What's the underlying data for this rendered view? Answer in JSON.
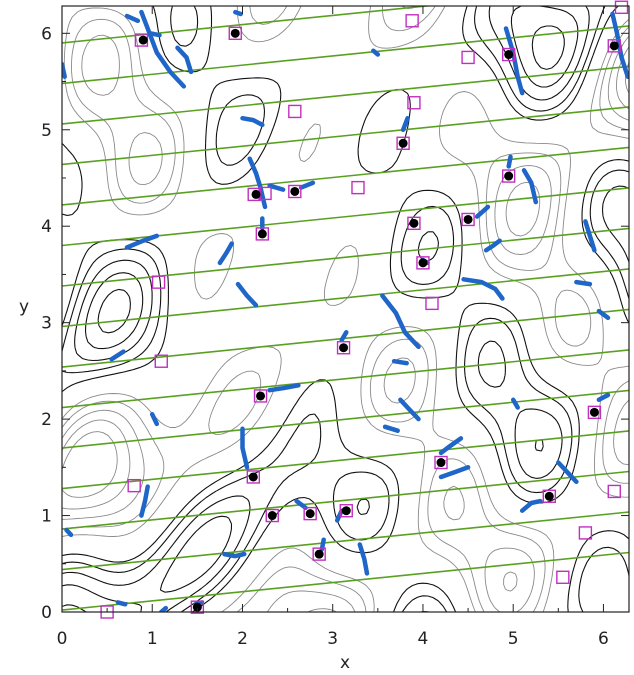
{
  "chart_data": {
    "type": "scatter",
    "title": "",
    "xlabel": "x",
    "ylabel": "y",
    "xlim": [
      0,
      6.2832
    ],
    "ylim": [
      0,
      6.2832
    ],
    "xticks": [
      0,
      1,
      2,
      3,
      4,
      5,
      6
    ],
    "yticks": [
      0,
      1,
      2,
      3,
      4,
      5,
      6
    ],
    "grid": false,
    "colors": {
      "contour_strong": "#111111",
      "contour_weak": "#8a8a8a",
      "field_lines": "#5aa020",
      "filled_points": "#000000",
      "square_markers": "#c030c0",
      "blue_arcs": "#1f66c8"
    },
    "field_lines": {
      "slope": 0.095,
      "intercepts": [
        0.02,
        0.44,
        0.86,
        1.28,
        1.7,
        2.12,
        2.54,
        2.96,
        3.38,
        3.8,
        4.22,
        4.64,
        5.06,
        5.48,
        5.9,
        6.32
      ]
    },
    "filled_points": [
      {
        "x": 0.9,
        "y": 5.93
      },
      {
        "x": 1.92,
        "y": 6.0
      },
      {
        "x": 4.95,
        "y": 5.78
      },
      {
        "x": 6.12,
        "y": 5.87
      },
      {
        "x": 3.78,
        "y": 4.86
      },
      {
        "x": 4.95,
        "y": 4.52
      },
      {
        "x": 2.15,
        "y": 4.33
      },
      {
        "x": 2.58,
        "y": 4.36
      },
      {
        "x": 2.22,
        "y": 3.92
      },
      {
        "x": 3.9,
        "y": 4.03
      },
      {
        "x": 4.5,
        "y": 4.07
      },
      {
        "x": 4.0,
        "y": 3.62
      },
      {
        "x": 3.12,
        "y": 2.74
      },
      {
        "x": 2.2,
        "y": 2.24
      },
      {
        "x": 5.9,
        "y": 2.07
      },
      {
        "x": 4.2,
        "y": 1.55
      },
      {
        "x": 2.12,
        "y": 1.4
      },
      {
        "x": 5.4,
        "y": 1.2
      },
      {
        "x": 2.33,
        "y": 1.0
      },
      {
        "x": 2.75,
        "y": 1.02
      },
      {
        "x": 3.15,
        "y": 1.05
      },
      {
        "x": 2.85,
        "y": 0.6
      },
      {
        "x": 1.5,
        "y": 0.05
      }
    ],
    "square_markers": [
      {
        "x": 0.88,
        "y": 5.93
      },
      {
        "x": 1.92,
        "y": 6.0
      },
      {
        "x": 3.88,
        "y": 6.13
      },
      {
        "x": 4.5,
        "y": 5.75
      },
      {
        "x": 4.95,
        "y": 5.78
      },
      {
        "x": 6.12,
        "y": 5.87
      },
      {
        "x": 6.2,
        "y": 6.27
      },
      {
        "x": 3.9,
        "y": 5.28
      },
      {
        "x": 2.58,
        "y": 5.19
      },
      {
        "x": 3.78,
        "y": 4.86
      },
      {
        "x": 4.95,
        "y": 4.52
      },
      {
        "x": 2.13,
        "y": 4.33
      },
      {
        "x": 2.25,
        "y": 4.34
      },
      {
        "x": 2.58,
        "y": 4.36
      },
      {
        "x": 3.28,
        "y": 4.4
      },
      {
        "x": 2.22,
        "y": 3.92
      },
      {
        "x": 3.9,
        "y": 4.03
      },
      {
        "x": 4.5,
        "y": 4.07
      },
      {
        "x": 4.0,
        "y": 3.62
      },
      {
        "x": 1.07,
        "y": 3.42
      },
      {
        "x": 4.1,
        "y": 3.2
      },
      {
        "x": 3.12,
        "y": 2.74
      },
      {
        "x": 1.1,
        "y": 2.6
      },
      {
        "x": 2.2,
        "y": 2.24
      },
      {
        "x": 5.9,
        "y": 2.07
      },
      {
        "x": 4.2,
        "y": 1.55
      },
      {
        "x": 2.12,
        "y": 1.4
      },
      {
        "x": 0.8,
        "y": 1.31
      },
      {
        "x": 5.4,
        "y": 1.2
      },
      {
        "x": 6.12,
        "y": 1.25
      },
      {
        "x": 2.33,
        "y": 1.0
      },
      {
        "x": 2.75,
        "y": 1.02
      },
      {
        "x": 3.15,
        "y": 1.05
      },
      {
        "x": 5.8,
        "y": 0.82
      },
      {
        "x": 2.85,
        "y": 0.6
      },
      {
        "x": 5.55,
        "y": 0.36
      },
      {
        "x": 1.5,
        "y": 0.05
      },
      {
        "x": 0.5,
        "y": 0.0
      }
    ],
    "blue_arcs": [
      [
        [
          0.88,
          6.22
        ],
        [
          0.95,
          6.05
        ],
        [
          1.05,
          5.8
        ],
        [
          1.2,
          5.6
        ],
        [
          1.35,
          5.45
        ]
      ],
      [
        [
          1.28,
          5.85
        ],
        [
          1.38,
          5.75
        ],
        [
          1.43,
          5.6
        ]
      ],
      [
        [
          0.98,
          6.0
        ],
        [
          1.08,
          5.98
        ]
      ],
      [
        [
          0.72,
          6.18
        ],
        [
          0.84,
          6.13
        ]
      ],
      [
        [
          1.92,
          6.22
        ],
        [
          1.98,
          6.2
        ]
      ],
      [
        [
          4.92,
          6.05
        ],
        [
          5.0,
          5.8
        ],
        [
          5.05,
          5.55
        ],
        [
          5.1,
          5.38
        ]
      ],
      [
        [
          6.1,
          6.2
        ],
        [
          6.15,
          6.0
        ],
        [
          6.2,
          5.75
        ],
        [
          6.27,
          5.55
        ]
      ],
      [
        [
          3.45,
          5.82
        ],
        [
          3.5,
          5.78
        ]
      ],
      [
        [
          0.0,
          5.68
        ],
        [
          0.03,
          5.55
        ]
      ],
      [
        [
          2.0,
          5.12
        ],
        [
          2.12,
          5.1
        ],
        [
          2.22,
          5.05
        ]
      ],
      [
        [
          3.78,
          5.0
        ],
        [
          3.83,
          5.12
        ]
      ],
      [
        [
          5.12,
          4.58
        ],
        [
          5.2,
          4.45
        ],
        [
          5.25,
          4.25
        ]
      ],
      [
        [
          4.95,
          4.62
        ],
        [
          4.97,
          4.72
        ]
      ],
      [
        [
          2.08,
          4.7
        ],
        [
          2.15,
          4.55
        ],
        [
          2.2,
          4.4
        ],
        [
          2.25,
          4.2
        ]
      ],
      [
        [
          2.3,
          4.42
        ],
        [
          2.45,
          4.38
        ]
      ],
      [
        [
          2.65,
          4.4
        ],
        [
          2.78,
          4.45
        ]
      ],
      [
        [
          0.72,
          3.78
        ],
        [
          0.9,
          3.85
        ],
        [
          1.05,
          3.9
        ]
      ],
      [
        [
          1.75,
          3.62
        ],
        [
          1.82,
          3.72
        ],
        [
          1.88,
          3.82
        ]
      ],
      [
        [
          2.22,
          3.98
        ],
        [
          2.22,
          4.08
        ]
      ],
      [
        [
          4.6,
          4.1
        ],
        [
          4.72,
          4.2
        ]
      ],
      [
        [
          4.85,
          3.85
        ],
        [
          4.78,
          3.8
        ],
        [
          4.7,
          3.75
        ]
      ],
      [
        [
          5.8,
          4.05
        ],
        [
          5.85,
          3.9
        ],
        [
          5.9,
          3.75
        ]
      ],
      [
        [
          4.0,
          3.65
        ],
        [
          4.05,
          3.62
        ]
      ],
      [
        [
          4.45,
          3.45
        ],
        [
          4.65,
          3.42
        ],
        [
          4.8,
          3.35
        ],
        [
          4.88,
          3.25
        ]
      ],
      [
        [
          5.7,
          3.42
        ],
        [
          5.85,
          3.4
        ]
      ],
      [
        [
          1.95,
          3.4
        ],
        [
          2.05,
          3.28
        ],
        [
          2.15,
          3.18
        ]
      ],
      [
        [
          3.55,
          3.28
        ],
        [
          3.7,
          3.1
        ],
        [
          3.8,
          2.9
        ],
        [
          3.95,
          2.75
        ]
      ],
      [
        [
          5.95,
          3.12
        ],
        [
          6.05,
          3.05
        ]
      ],
      [
        [
          3.1,
          2.82
        ],
        [
          3.15,
          2.9
        ]
      ],
      [
        [
          0.55,
          2.62
        ],
        [
          0.68,
          2.7
        ]
      ],
      [
        [
          3.68,
          2.6
        ],
        [
          3.82,
          2.58
        ]
      ],
      [
        [
          2.3,
          2.3
        ],
        [
          2.45,
          2.32
        ],
        [
          2.62,
          2.35
        ]
      ],
      [
        [
          3.75,
          2.2
        ],
        [
          3.85,
          2.1
        ],
        [
          3.95,
          2.0
        ]
      ],
      [
        [
          5.0,
          2.2
        ],
        [
          5.05,
          2.12
        ]
      ],
      [
        [
          5.95,
          2.2
        ],
        [
          6.05,
          2.25
        ]
      ],
      [
        [
          1.0,
          2.05
        ],
        [
          1.05,
          1.95
        ]
      ],
      [
        [
          3.58,
          1.92
        ],
        [
          3.72,
          1.88
        ]
      ],
      [
        [
          4.2,
          1.65
        ],
        [
          4.3,
          1.72
        ],
        [
          4.42,
          1.8
        ]
      ],
      [
        [
          2.0,
          1.9
        ],
        [
          2.0,
          1.7
        ],
        [
          2.05,
          1.5
        ]
      ],
      [
        [
          4.2,
          1.4
        ],
        [
          4.35,
          1.45
        ],
        [
          4.5,
          1.5
        ]
      ],
      [
        [
          5.5,
          1.55
        ],
        [
          5.6,
          1.45
        ],
        [
          5.7,
          1.35
        ]
      ],
      [
        [
          5.1,
          1.05
        ],
        [
          5.2,
          1.13
        ],
        [
          5.3,
          1.15
        ]
      ],
      [
        [
          2.6,
          1.15
        ],
        [
          2.7,
          1.08
        ]
      ],
      [
        [
          0.95,
          1.3
        ],
        [
          0.92,
          1.15
        ],
        [
          0.88,
          1.0
        ]
      ],
      [
        [
          3.1,
          1.05
        ],
        [
          3.05,
          0.95
        ]
      ],
      [
        [
          0.05,
          0.85
        ],
        [
          0.1,
          0.8
        ]
      ],
      [
        [
          1.8,
          0.6
        ],
        [
          1.92,
          0.58
        ],
        [
          2.02,
          0.6
        ]
      ],
      [
        [
          3.3,
          0.7
        ],
        [
          3.35,
          0.55
        ],
        [
          3.38,
          0.4
        ]
      ],
      [
        [
          2.88,
          0.65
        ],
        [
          2.9,
          0.75
        ]
      ],
      [
        [
          0.62,
          0.1
        ],
        [
          0.7,
          0.08
        ]
      ],
      [
        [
          1.48,
          0.08
        ],
        [
          1.55,
          0.1
        ]
      ],
      [
        [
          1.1,
          0.0
        ],
        [
          1.15,
          0.04
        ]
      ]
    ]
  }
}
